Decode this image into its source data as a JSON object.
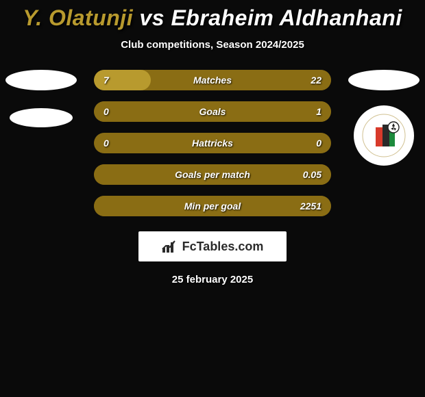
{
  "header": {
    "p1_name": "Y. Olatunji",
    "vs": " vs ",
    "p2_name": "Ebraheim Aldhanhani",
    "p1_color": "#b89a2e",
    "p2_color": "#ffffff",
    "subtitle": "Club competitions, Season 2024/2025"
  },
  "colors": {
    "left": "#b89a2e",
    "right": "#8a6d14",
    "row_bg": "#8a6d14"
  },
  "rows": [
    {
      "label": "Matches",
      "l_val": "7",
      "r_val": "22",
      "l_pct": 24,
      "r_pct": 76
    },
    {
      "label": "Goals",
      "l_val": "0",
      "r_val": "1",
      "l_pct": 0,
      "r_pct": 100
    },
    {
      "label": "Hattricks",
      "l_val": "0",
      "r_val": "0",
      "l_pct": 0,
      "r_pct": 0
    },
    {
      "label": "Goals per match",
      "l_val": "",
      "r_val": "0.05",
      "l_pct": 0,
      "r_pct": 100
    },
    {
      "label": "Min per goal",
      "l_val": "",
      "r_val": "2251",
      "l_pct": 0,
      "r_pct": 100
    }
  ],
  "footer": {
    "brand": "FcTables.com",
    "date": "25 february 2025"
  },
  "club_right": {
    "bg": "#ffffff",
    "accent1": "#d83a2b",
    "accent2": "#2a2a2a",
    "accent3": "#1c8a3c"
  }
}
